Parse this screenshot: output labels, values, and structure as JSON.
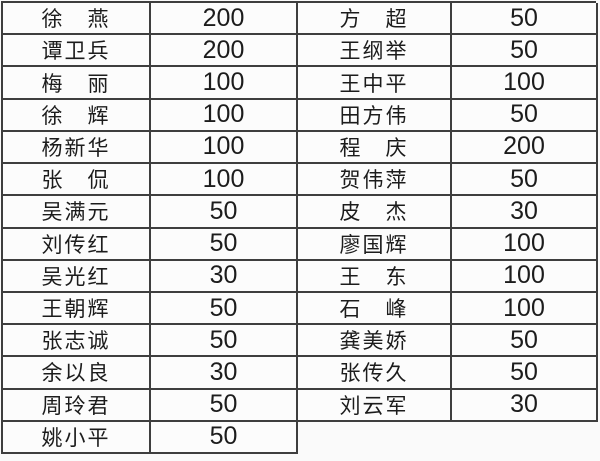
{
  "page": {
    "background_color": "#fafafa",
    "grid_line_color": "#3e3e3e",
    "text_color": "#1c1c1c",
    "description_rows": 14
  },
  "table": {
    "type": "table",
    "columns": [
      "name",
      "amount",
      "name",
      "amount"
    ],
    "rows": [
      {
        "left_name": "徐　燕",
        "left_value": "200",
        "right_name": "方　超",
        "right_value": "50"
      },
      {
        "left_name": "谭卫兵",
        "left_value": "200",
        "right_name": "王纲举",
        "right_value": "50"
      },
      {
        "left_name": "梅　丽",
        "left_value": "100",
        "right_name": "王中平",
        "right_value": "100"
      },
      {
        "left_name": "徐　辉",
        "left_value": "100",
        "right_name": "田方伟",
        "right_value": "50"
      },
      {
        "left_name": "杨新华",
        "left_value": "100",
        "right_name": "程　庆",
        "right_value": "200"
      },
      {
        "left_name": "张　侃",
        "left_value": "100",
        "right_name": "贺伟萍",
        "right_value": "50"
      },
      {
        "left_name": "吴满元",
        "left_value": "50",
        "right_name": "皮　杰",
        "right_value": "30"
      },
      {
        "left_name": "刘传红",
        "left_value": "50",
        "right_name": "廖国辉",
        "right_value": "100"
      },
      {
        "left_name": "吴光红",
        "left_value": "30",
        "right_name": "王　东",
        "right_value": "100"
      },
      {
        "left_name": "王朝辉",
        "left_value": "50",
        "right_name": "石　峰",
        "right_value": "100"
      },
      {
        "left_name": "张志诚",
        "left_value": "50",
        "right_name": "龚美娇",
        "right_value": "50"
      },
      {
        "left_name": "余以良",
        "left_value": "30",
        "right_name": "张传久",
        "right_value": "50"
      },
      {
        "left_name": "周玲君",
        "left_value": "50",
        "right_name": "刘云军",
        "right_value": "30"
      },
      {
        "left_name": "姚小平",
        "left_value": "50",
        "right_name": "",
        "right_value": ""
      }
    ]
  }
}
